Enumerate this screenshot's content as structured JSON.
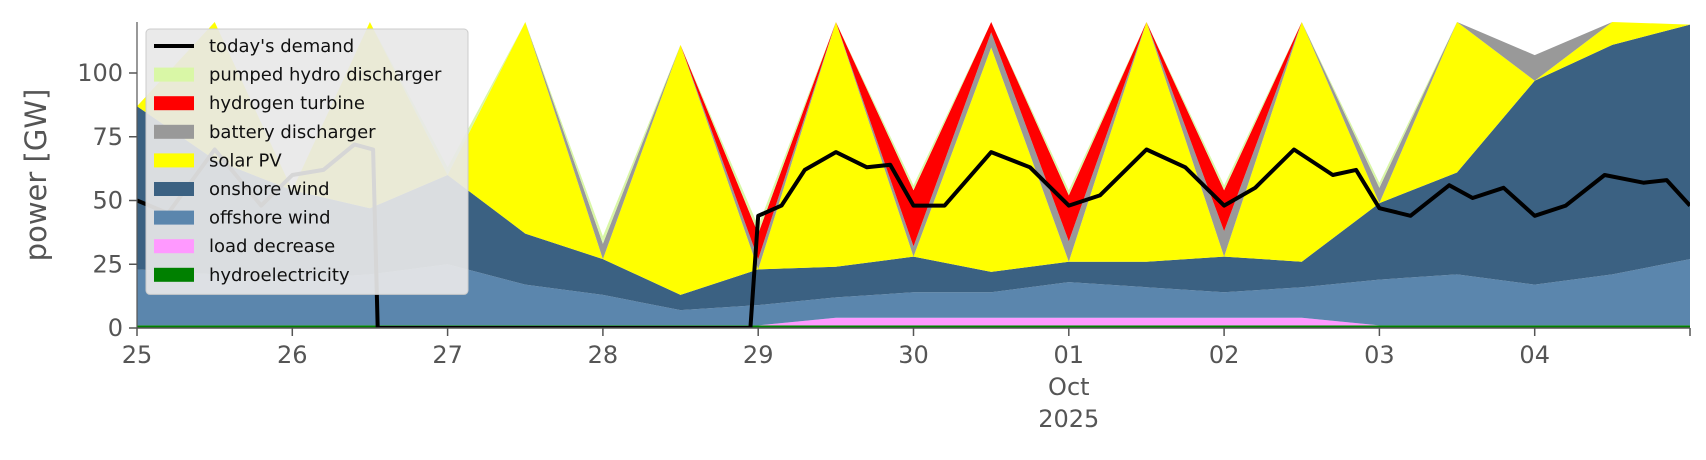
{
  "chart_data": {
    "type": "area",
    "title": "",
    "xlabel": "",
    "ylabel": "power [GW]",
    "ylim": [
      0,
      120
    ],
    "yticks": [
      0,
      25,
      50,
      75,
      100
    ],
    "x_start": "2025-09-25",
    "x_end": "2025-10-05",
    "x_tick_labels": [
      "25",
      "26",
      "27",
      "28",
      "29",
      "30",
      "01",
      "02",
      "03",
      "04"
    ],
    "x_tick_sublabel": "Oct",
    "x_tick_sublabel2": "2025",
    "grid": false,
    "legend_position": "top-left",
    "legend": [
      {
        "name": "today's demand",
        "kind": "line",
        "color": "#000000"
      },
      {
        "name": "pumped hydro discharger",
        "kind": "patch",
        "color": "#d9f7a6"
      },
      {
        "name": "hydrogen turbine",
        "kind": "patch",
        "color": "#ff0000"
      },
      {
        "name": "battery discharger",
        "kind": "patch",
        "color": "#999999"
      },
      {
        "name": "solar PV",
        "kind": "patch",
        "color": "#ffff00"
      },
      {
        "name": "onshore wind",
        "kind": "patch",
        "color": "#3b6182"
      },
      {
        "name": "offshore wind",
        "kind": "patch",
        "color": "#5b86ad"
      },
      {
        "name": "load decrease",
        "kind": "patch",
        "color": "#ff99ff"
      },
      {
        "name": "hydroelectricity",
        "kind": "patch",
        "color": "#008000"
      }
    ],
    "x_days": [
      25,
      25.5,
      26,
      26.5,
      27,
      27.5,
      28,
      28.5,
      29,
      29.5,
      30,
      30.5,
      31,
      31.5,
      32,
      32.5,
      33,
      33.5,
      34,
      34.5,
      35
    ],
    "stack_order": [
      "hydroelectricity",
      "load decrease",
      "offshore wind",
      "onshore wind",
      "solar PV",
      "battery discharger",
      "hydrogen turbine",
      "pumped hydro discharger"
    ],
    "series": [
      {
        "name": "hydroelectricity",
        "color": "#008000",
        "values": [
          1,
          1,
          1,
          1,
          1,
          1,
          1,
          1,
          1,
          1,
          1,
          1,
          1,
          1,
          1,
          1,
          1,
          1,
          1,
          1,
          1
        ]
      },
      {
        "name": "load decrease",
        "color": "#ff99ff",
        "values": [
          0,
          0,
          0,
          0,
          0,
          0,
          0,
          0,
          0,
          3,
          3,
          3,
          3,
          3,
          3,
          3,
          0,
          0,
          0,
          0,
          0
        ]
      },
      {
        "name": "offshore wind",
        "color": "#5b86ad",
        "values": [
          22,
          20,
          18,
          20,
          24,
          16,
          12,
          6,
          8,
          8,
          10,
          10,
          14,
          12,
          10,
          12,
          18,
          20,
          16,
          20,
          26
        ]
      },
      {
        "name": "onshore wind",
        "color": "#3b6182",
        "values": [
          64,
          45,
          35,
          26,
          35,
          20,
          14,
          6,
          14,
          12,
          14,
          8,
          8,
          10,
          14,
          10,
          30,
          40,
          80,
          90,
          92
        ]
      },
      {
        "name": "solar PV",
        "color": "#ffff00",
        "values": [
          0,
          100,
          0,
          120,
          0,
          98,
          0,
          98,
          0,
          104,
          0,
          88,
          0,
          128,
          0,
          128,
          0,
          128,
          0,
          128,
          0
        ]
      },
      {
        "name": "battery discharger",
        "color": "#999999",
        "values": [
          0,
          0,
          0,
          0,
          0,
          8,
          6,
          0,
          4,
          12,
          4,
          6,
          8,
          12,
          10,
          12,
          6,
          0,
          10,
          8,
          0
        ]
      },
      {
        "name": "hydrogen turbine",
        "color": "#ff0000",
        "values": [
          0,
          0,
          0,
          0,
          0,
          0,
          0,
          0,
          10,
          20,
          22,
          20,
          18,
          22,
          16,
          20,
          0,
          0,
          0,
          0,
          0
        ]
      },
      {
        "name": "pumped hydro discharger",
        "color": "#d9f7a6",
        "values": [
          0,
          0,
          0,
          0,
          3,
          3,
          3,
          0,
          3,
          3,
          2,
          2,
          2,
          2,
          2,
          2,
          2,
          0,
          0,
          0,
          0
        ]
      }
    ],
    "demand": {
      "name": "today's demand",
      "color": "#000000",
      "x_days": [
        25,
        25.2,
        25.5,
        25.8,
        26,
        26.2,
        26.4,
        26.52,
        26.55,
        27,
        27.5,
        28,
        28.5,
        28.95,
        29.0,
        29.15,
        29.3,
        29.5,
        29.7,
        29.85,
        30,
        30.2,
        30.5,
        30.75,
        31,
        31.2,
        31.5,
        31.75,
        32,
        32.2,
        32.45,
        32.7,
        32.85,
        33.0,
        33.2,
        33.45,
        33.6,
        33.8,
        34.0,
        34.2,
        34.45,
        34.7,
        34.85,
        35.0
      ],
      "values": [
        50,
        45,
        70,
        48,
        60,
        62,
        72,
        70,
        0,
        0,
        0,
        0,
        0,
        0,
        44,
        48,
        62,
        69,
        63,
        64,
        48,
        48,
        69,
        63,
        48,
        52,
        70,
        63,
        48,
        55,
        70,
        60,
        62,
        47,
        44,
        56,
        51,
        55,
        44,
        48,
        60,
        57,
        58,
        48
      ]
    }
  }
}
